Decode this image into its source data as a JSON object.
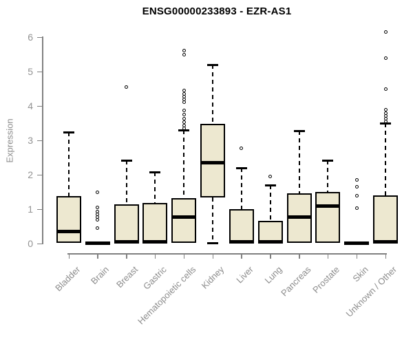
{
  "chart_data": {
    "type": "boxplot",
    "title": "ENSG00000233893 - EZR-AS1",
    "xlabel": "",
    "ylabel": "Expression",
    "ylim": [
      0,
      6.3
    ],
    "y_ticks": [
      0,
      1,
      2,
      3,
      4,
      5,
      6
    ],
    "grid": false,
    "legend": "none",
    "categories": [
      "Bladder",
      "Brain",
      "Breast",
      "Gastric",
      "Hematopoietic cells",
      "Kidney",
      "Liver",
      "Lung",
      "Pancreas",
      "Prostate",
      "Skin",
      "Unknown / Other"
    ],
    "series": [
      {
        "name": "Bladder",
        "whisker_low": 0.02,
        "q1": 0.02,
        "median": 0.35,
        "q3": 1.38,
        "whisker_high": 3.25,
        "outliers": []
      },
      {
        "name": "Brain",
        "whisker_low": 0.0,
        "q1": 0.0,
        "median": 0.02,
        "q3": 0.05,
        "whisker_high": 0.05,
        "outliers": [
          1.5,
          1.05,
          0.94,
          0.86,
          0.78,
          0.7,
          0.45
        ]
      },
      {
        "name": "Breast",
        "whisker_low": 0.02,
        "q1": 0.02,
        "median": 0.05,
        "q3": 1.15,
        "whisker_high": 2.42,
        "outliers": [
          4.55
        ]
      },
      {
        "name": "Gastric",
        "whisker_low": 0.02,
        "q1": 0.02,
        "median": 0.05,
        "q3": 1.18,
        "whisker_high": 2.08,
        "outliers": []
      },
      {
        "name": "Hematopoietic cells",
        "whisker_low": 0.02,
        "q1": 0.02,
        "median": 0.78,
        "q3": 1.32,
        "whisker_high": 3.3,
        "outliers": [
          5.62,
          5.5,
          4.45,
          4.36,
          4.28,
          4.2,
          4.12,
          3.88,
          3.76,
          3.64,
          3.54,
          3.44,
          3.36
        ]
      },
      {
        "name": "Kidney",
        "whisker_low": 0.02,
        "q1": 1.34,
        "median": 2.36,
        "q3": 3.48,
        "whisker_high": 5.2,
        "outliers": []
      },
      {
        "name": "Liver",
        "whisker_low": 0.02,
        "q1": 0.02,
        "median": 0.05,
        "q3": 1.0,
        "whisker_high": 2.2,
        "outliers": [
          2.78
        ]
      },
      {
        "name": "Lung",
        "whisker_low": 0.02,
        "q1": 0.02,
        "median": 0.05,
        "q3": 0.66,
        "whisker_high": 1.7,
        "outliers": [
          1.95
        ]
      },
      {
        "name": "Pancreas",
        "whisker_low": 0.02,
        "q1": 0.02,
        "median": 0.78,
        "q3": 1.47,
        "whisker_high": 3.28,
        "outliers": []
      },
      {
        "name": "Prostate",
        "whisker_low": 0.02,
        "q1": 0.02,
        "median": 1.1,
        "q3": 1.5,
        "whisker_high": 2.42,
        "outliers": []
      },
      {
        "name": "Skin",
        "whisker_low": 0.0,
        "q1": 0.0,
        "median": 0.02,
        "q3": 0.05,
        "whisker_high": 0.05,
        "outliers": [
          1.86,
          1.66,
          1.4,
          1.04
        ]
      },
      {
        "name": "Unknown / Other",
        "whisker_low": 0.02,
        "q1": 0.02,
        "median": 0.06,
        "q3": 1.4,
        "whisker_high": 3.5,
        "outliers": [
          6.15,
          5.4,
          4.5,
          3.9,
          3.8,
          3.72,
          3.64,
          3.56
        ]
      }
    ]
  },
  "colors": {
    "box_fill": "#EDE8D0",
    "box_border": "#000000",
    "median": "#000000",
    "axis": "#808080",
    "tick_label": "#929292",
    "title": "#000000",
    "background": "#FFFFFF"
  }
}
